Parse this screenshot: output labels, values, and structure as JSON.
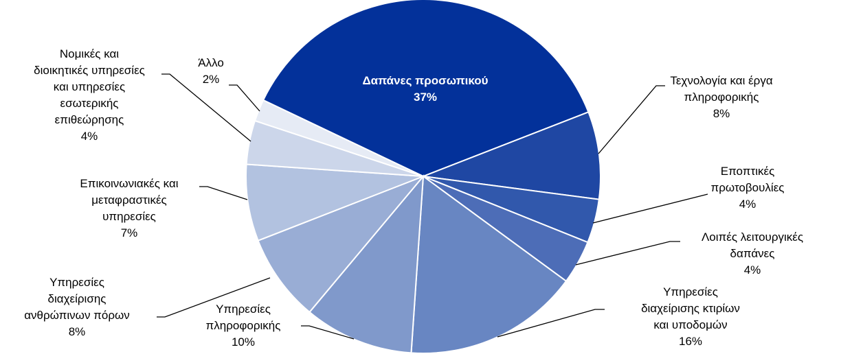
{
  "chart_data": {
    "type": "pie",
    "start_angle_deg": -64.5,
    "direction": "clockwise",
    "slices": [
      {
        "label": "Δαπάνες προσωπικού",
        "value": 37,
        "value_label": "37%",
        "color": "#03319A",
        "label_inside": true
      },
      {
        "label": "Τεχνολογία και έργα πληροφορικής",
        "value": 8,
        "value_label": "8%",
        "color": "#1F47A3"
      },
      {
        "label": "Εποπτικές πρωτοβουλίες",
        "value": 4,
        "value_label": "4%",
        "color": "#3158AC"
      },
      {
        "label": "Λοιπές λειτουργικές δαπάνες",
        "value": 4,
        "value_label": "4%",
        "color": "#4D6DB7"
      },
      {
        "label": "Υπηρεσίες διαχείρισης κτιρίων και υποδομών",
        "value": 16,
        "value_label": "16%",
        "color": "#6886C2"
      },
      {
        "label": "Υπηρεσίες πληροφορικής",
        "value": 10,
        "value_label": "10%",
        "color": "#8099CB"
      },
      {
        "label": "Υπηρεσίες διαχείρισης ανθρώπινων πόρων",
        "value": 8,
        "value_label": "8%",
        "color": "#99ADD5"
      },
      {
        "label": "Επικοινωνιακές και μεταφραστικές υπηρεσίες",
        "value": 7,
        "value_label": "7%",
        "color": "#B2C2E0"
      },
      {
        "label": "Νομικές και διοικητικές υπηρεσίες και υπηρεσίες εσωτερικής επιθεώρησης",
        "value": 4,
        "value_label": "4%",
        "color": "#CCD6EA"
      },
      {
        "label": "Άλλο",
        "value": 2,
        "value_label": "2%",
        "color": "#E6EBF5"
      }
    ],
    "label_lines": [
      [
        "Δαπάνες προσωπικού"
      ],
      [
        "Τεχνολογία και έργα",
        "πληροφορικής"
      ],
      [
        "Εποπτικές",
        "πρωτοβουλίες"
      ],
      [
        "Λοιπές λειτουργικές",
        "δαπάνες"
      ],
      [
        "Υπηρεσίες",
        "διαχείρισης κτιρίων",
        "και υποδομών"
      ],
      [
        "Υπηρεσίες",
        "πληροφορικής"
      ],
      [
        "Υπηρεσίες",
        "διαχείρισης",
        "ανθρώπινων πόρων"
      ],
      [
        "Επικοινωνιακές και",
        "μεταφραστικές",
        "υπηρεσίες"
      ],
      [
        "Νομικές και",
        "διοικητικές υπηρεσίες",
        "και υπηρεσίες",
        "εσωτερικής",
        "επιθεώρησης"
      ],
      [
        "Άλλο"
      ]
    ]
  }
}
